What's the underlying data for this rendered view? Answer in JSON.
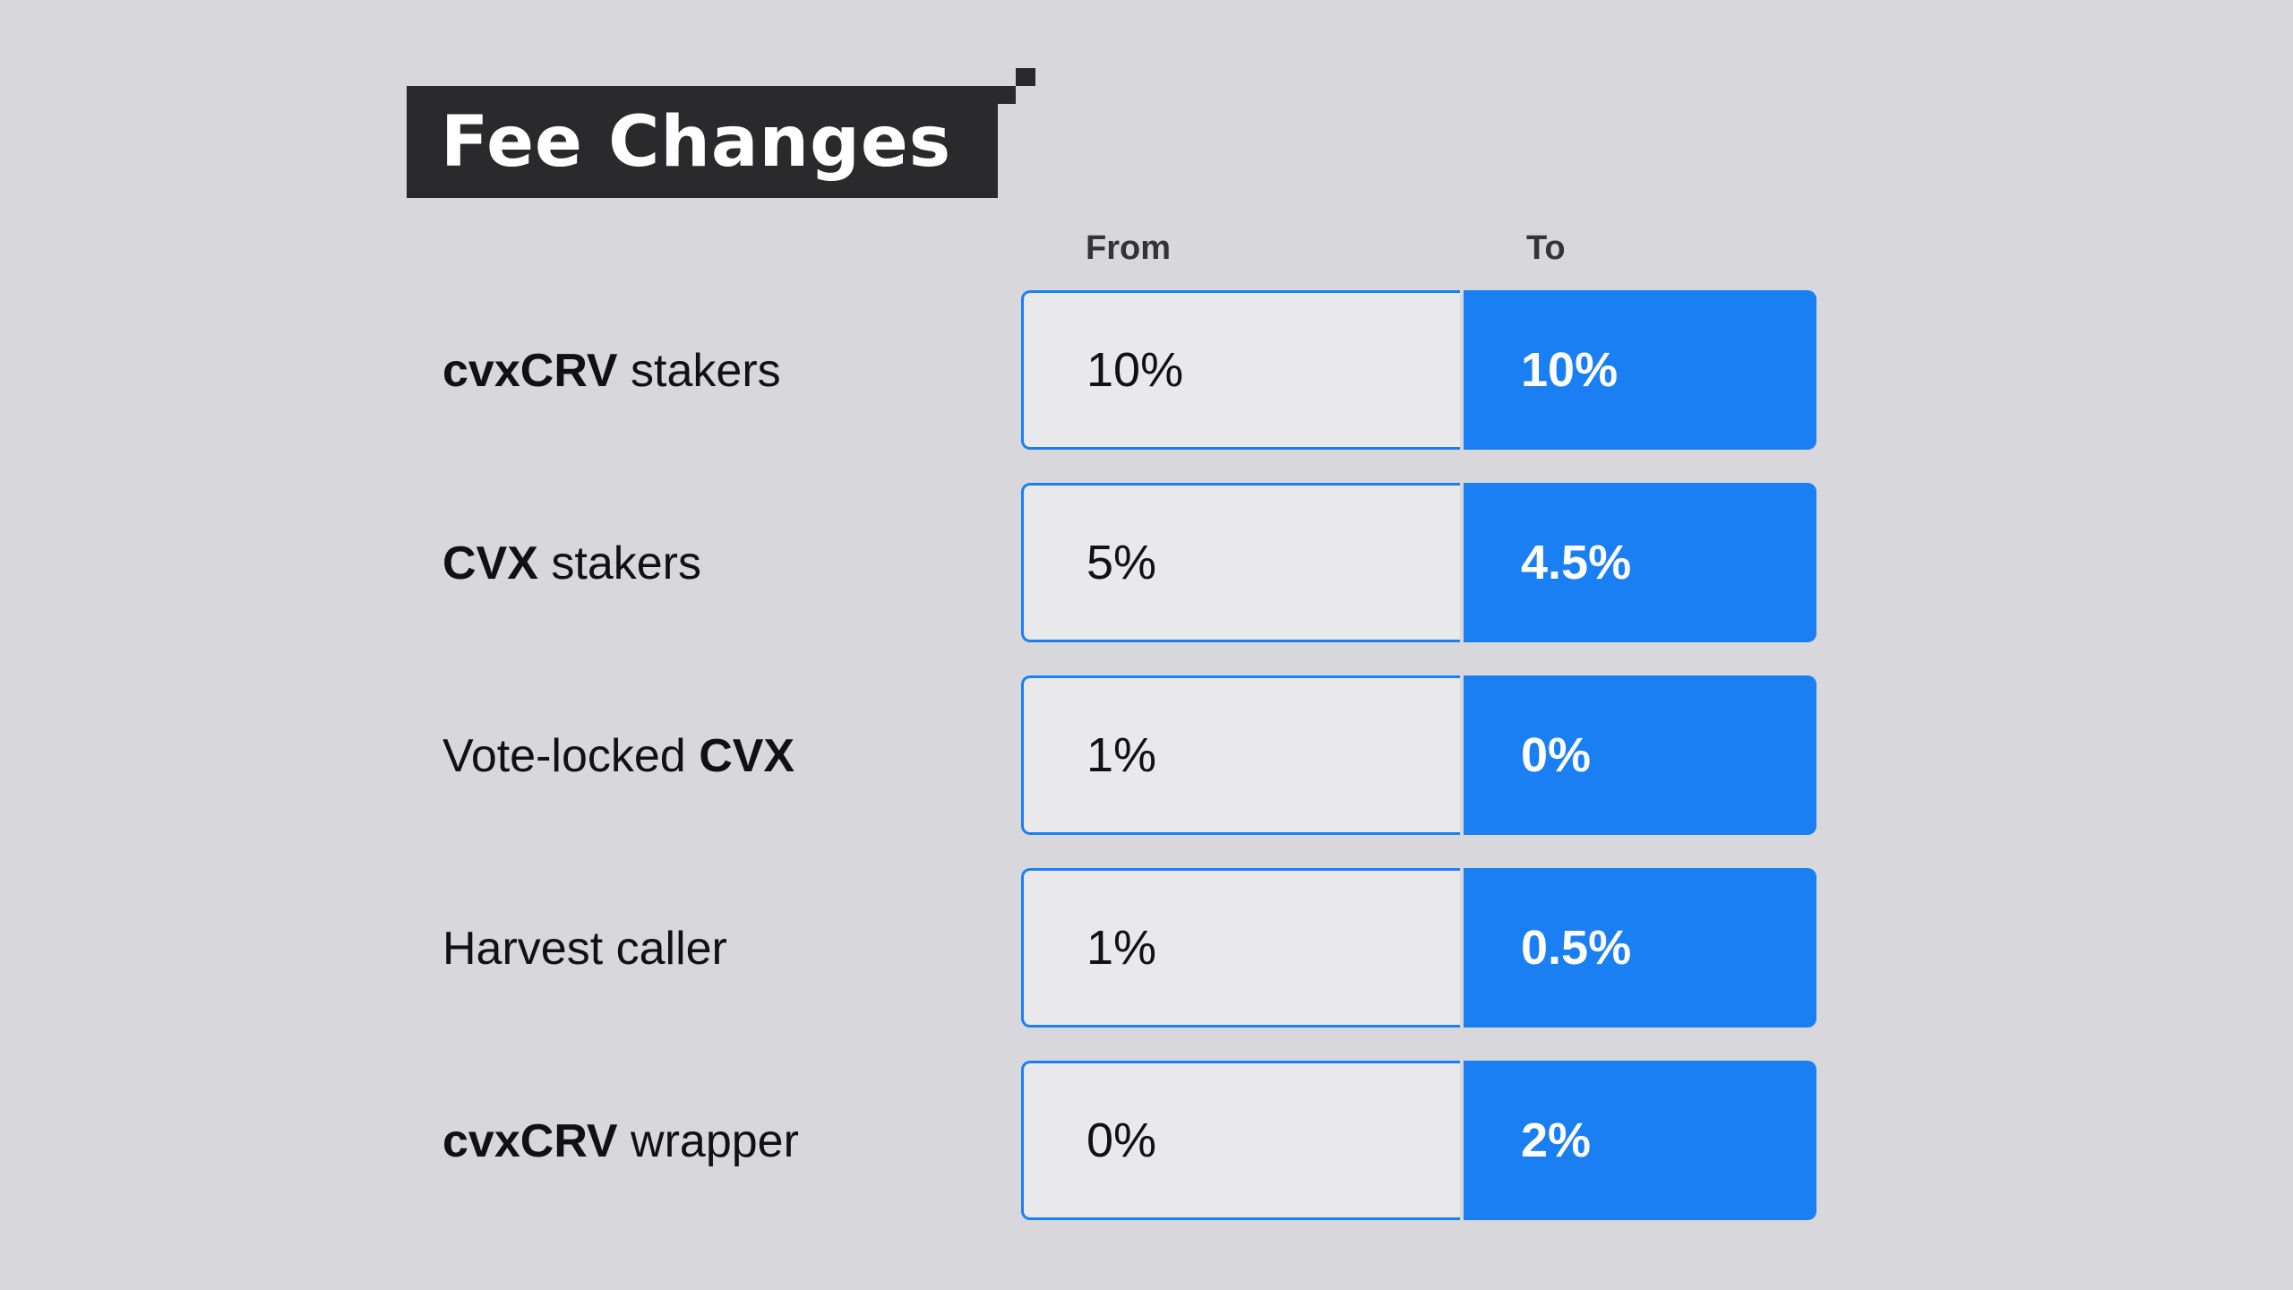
{
  "title": "Fee Changes",
  "columns": {
    "from": "From",
    "to": "To"
  },
  "rows": [
    {
      "label_bold": "cvxCRV",
      "label_rest": " stakers",
      "from": "10%",
      "to": "10%"
    },
    {
      "label_bold": "CVX",
      "label_rest": " stakers",
      "from": "5%",
      "to": "4.5%"
    },
    {
      "label_pre": "Vote-locked ",
      "label_bold": "CVX",
      "from": "1%",
      "to": "0%"
    },
    {
      "label_pre": "Harvest caller",
      "from": "1%",
      "to": "0.5%"
    },
    {
      "label_bold": "cvxCRV",
      "label_rest": " wrapper",
      "from": "0%",
      "to": "2%"
    }
  ],
  "colors": {
    "accent": "#1a7ff2",
    "title_bg": "#2a2a2c",
    "background": "#d8d8dc"
  }
}
